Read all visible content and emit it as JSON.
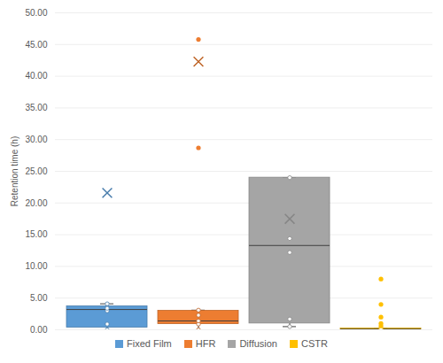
{
  "chart_data": {
    "type": "box",
    "y_label": "Retention time (h)",
    "ylim": [
      0,
      50
    ],
    "yticks": [
      {
        "value": 0,
        "label": "0.00"
      },
      {
        "value": 5,
        "label": "5.00"
      },
      {
        "value": 10,
        "label": "10.00"
      },
      {
        "value": 15,
        "label": "15.00"
      },
      {
        "value": 20,
        "label": "20.00"
      },
      {
        "value": 25,
        "label": "25.00"
      },
      {
        "value": 30,
        "label": "30.00"
      },
      {
        "value": 35,
        "label": "35.00"
      },
      {
        "value": 40,
        "label": "40.00"
      },
      {
        "value": 45,
        "label": "45.00"
      },
      {
        "value": 50,
        "label": "50.00"
      }
    ],
    "grid": true,
    "legend": "bottom",
    "tick_labels": "y",
    "series": [
      {
        "name": "Fixed Film",
        "color": "#5b9bd5",
        "whisker_low": 0.0,
        "q1": 0.35,
        "median": 3.2,
        "q3": 3.7,
        "whisker_high": 4.1,
        "mean": 21.6,
        "points": [
          0.0,
          0.9,
          3.0,
          3.4,
          4.1
        ],
        "outliers": []
      },
      {
        "name": "HFR",
        "color": "#ed7d31",
        "whisker_low": 0.0,
        "q1": 0.9,
        "median": 1.4,
        "q3": 3.0,
        "whisker_high": 3.1,
        "mean": 42.3,
        "points": [
          0.0,
          0.9,
          1.4,
          2.3,
          3.1
        ],
        "outliers": [
          28.7,
          45.8
        ]
      },
      {
        "name": "Diffusion",
        "color": "#a5a5a5",
        "whisker_low": 0.5,
        "q1": 1.0,
        "median": 13.3,
        "q3": 24.0,
        "whisker_high": 24.0,
        "mean": 17.5,
        "points": [
          0.5,
          1.7,
          12.2,
          14.4,
          24.0
        ],
        "outliers": []
      },
      {
        "name": "CSTR",
        "color": "#ffc000",
        "whisker_low": 0.0,
        "q1": 0.0,
        "median": 0.1,
        "q3": 0.2,
        "whisker_high": 0.2,
        "mean": null,
        "points": [
          0.0,
          0.1,
          0.2
        ],
        "outliers": [
          0.6,
          1.0,
          2.0,
          4.0,
          8.0
        ]
      }
    ]
  }
}
